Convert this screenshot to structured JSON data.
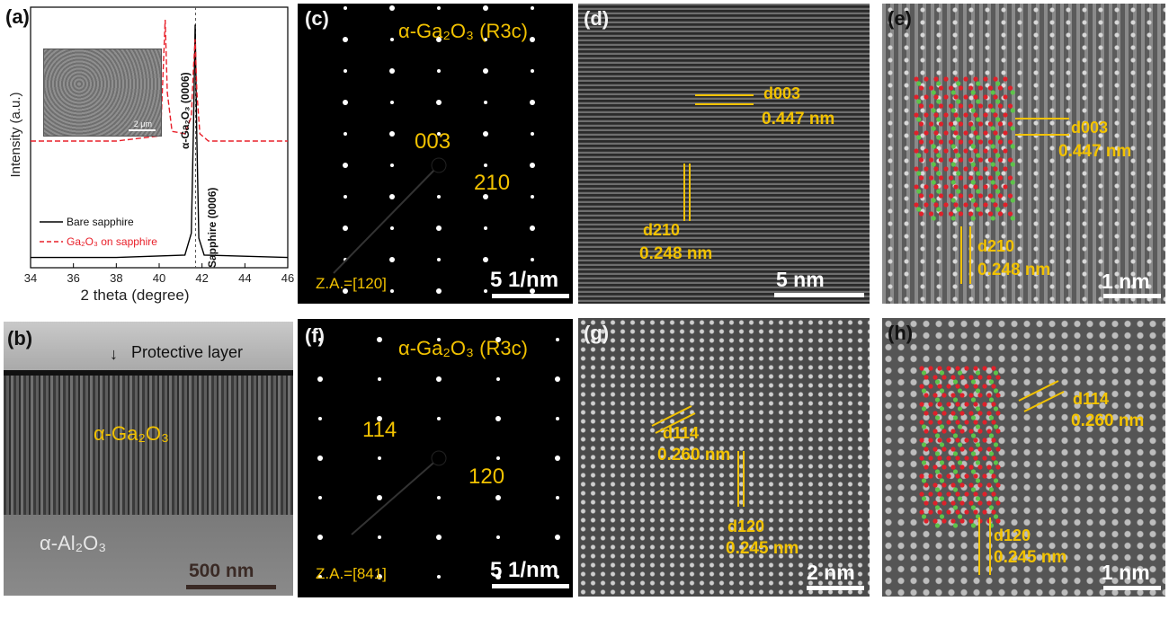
{
  "panel_labels": {
    "a": "(a)",
    "b": "(b)",
    "c": "(c)",
    "d": "(d)",
    "e": "(e)",
    "f": "(f)",
    "g": "(g)",
    "h": "(h)"
  },
  "chart_data": {
    "type": "line",
    "xlabel": "2 theta (degree)",
    "ylabel": "Intensity (a.u.)",
    "xlim": [
      34,
      46
    ],
    "xticks": [
      "34",
      "36",
      "38",
      "40",
      "42",
      "44",
      "46"
    ],
    "grid": false,
    "legend_position": "bottom-left",
    "reference_line_x": 41.7,
    "series": [
      {
        "name": "Bare sapphire",
        "color": "#000000",
        "style": "solid",
        "x": [
          34,
          38,
          41.2,
          41.5,
          41.6,
          41.68,
          41.75,
          41.85,
          42.1,
          46
        ],
        "y": [
          0.02,
          0.02,
          0.03,
          0.12,
          0.55,
          0.98,
          0.55,
          0.1,
          0.03,
          0.02
        ]
      },
      {
        "name": "Ga₂O₃ on sapphire",
        "color": "#e8202a",
        "style": "dashed",
        "x": [
          34,
          38,
          39.9,
          40.1,
          40.2,
          40.28,
          40.38,
          40.6,
          41.2,
          41.5,
          41.6,
          41.68,
          41.76,
          41.9,
          42.3,
          46
        ],
        "y": [
          0.5,
          0.5,
          0.52,
          0.6,
          0.82,
          1.0,
          0.7,
          0.54,
          0.53,
          0.6,
          0.8,
          0.92,
          0.7,
          0.53,
          0.5,
          0.5
        ]
      }
    ],
    "annotations": [
      "α-Ga₂O₃ (0006)",
      "Sapphire (0006)"
    ],
    "inset_scale": "2 μm"
  },
  "b": {
    "protective": "Protective layer",
    "film": "α-Ga₂O₃",
    "substrate": "α-Al₂O₃",
    "scale": "500 nm"
  },
  "c": {
    "title": "α-Ga₂O₃ (R3c)",
    "spot1": "003",
    "spot2": "210",
    "za": "Z.A.=[120]",
    "scale": "5 1/nm"
  },
  "f": {
    "title": "α-Ga₂O₃ (R3c)",
    "spot1": "114",
    "spot2": "120",
    "za": "Z.A.=[841]",
    "scale": "5 1/nm"
  },
  "d": {
    "d1_sym": "d003",
    "d1_val": "0.447 nm",
    "d2_sym": "d210",
    "d2_val": "0.248 nm",
    "scale": "5 nm"
  },
  "e": {
    "d1_sym": "d003",
    "d1_val": "0.447 nm",
    "d2_sym": "d210",
    "d2_val": "0.248 nm",
    "scale": "1 nm"
  },
  "g": {
    "d1_sym": "d114",
    "d1_val": "0.260 nm",
    "d2_sym": "d120",
    "d2_val": "0.245 nm",
    "scale": "2 nm"
  },
  "h": {
    "d1_sym": "d114",
    "d1_val": "0.260 nm",
    "d2_sym": "d120",
    "d2_val": "0.245 nm",
    "scale": "1 nm"
  },
  "colors": {
    "label_yellow": "#f2c200",
    "dashed_red": "#e8202a",
    "atom_red": "#e0212a",
    "atom_green": "#5ec34a"
  }
}
